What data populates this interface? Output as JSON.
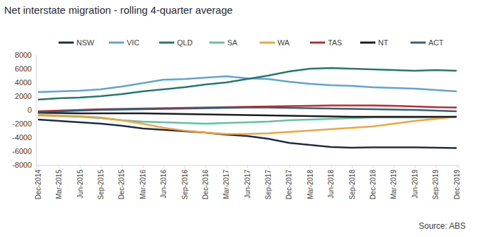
{
  "chart_data": {
    "type": "line",
    "title": "Net interstate migration - rolling 4-quarter average",
    "source": "Source: ABS",
    "categories": [
      "Dec-2014",
      "Mar-2015",
      "Jun-2015",
      "Sep-2015",
      "Dec-2015",
      "Mar-2016",
      "Jun-2016",
      "Sep-2016",
      "Dec-2016",
      "Mar-2017",
      "Jun-2017",
      "Sep-2017",
      "Dec-2017",
      "Mar-2018",
      "Jun-2018",
      "Sep-2018",
      "Dec-2018",
      "Mar-2019",
      "Jun-2019",
      "Sep-2019",
      "Dec-2019"
    ],
    "series": [
      {
        "name": "NSW",
        "color": "#1b2a47",
        "values": [
          -1400,
          -1600,
          -1800,
          -2000,
          -2300,
          -2700,
          -2900,
          -3100,
          -3300,
          -3600,
          -3800,
          -4200,
          -4800,
          -5100,
          -5400,
          -5500,
          -5450,
          -5450,
          -5450,
          -5500,
          -5550
        ]
      },
      {
        "name": "VIC",
        "color": "#5ba3d9",
        "values": [
          2600,
          2700,
          2800,
          3000,
          3400,
          3900,
          4400,
          4500,
          4700,
          4900,
          4600,
          4500,
          4100,
          3800,
          3600,
          3500,
          3300,
          3200,
          3100,
          2900,
          2700
        ]
      },
      {
        "name": "QLD",
        "color": "#1d7873",
        "values": [
          1500,
          1700,
          1800,
          2000,
          2300,
          2700,
          3000,
          3300,
          3700,
          4000,
          4500,
          5000,
          5600,
          6000,
          6100,
          6000,
          5900,
          5800,
          5700,
          5800,
          5700
        ]
      },
      {
        "name": "SA",
        "color": "#5fc3a3",
        "values": [
          -800,
          -900,
          -1000,
          -1200,
          -1500,
          -1700,
          -1800,
          -1900,
          -2000,
          -1900,
          -1800,
          -1700,
          -1500,
          -1400,
          -1300,
          -1200,
          -1100,
          -1100,
          -1100,
          -1100,
          -1000
        ]
      },
      {
        "name": "WA",
        "color": "#f5a23a",
        "values": [
          -700,
          -800,
          -900,
          -1100,
          -1500,
          -2000,
          -2600,
          -3000,
          -3300,
          -3500,
          -3500,
          -3400,
          -3200,
          -3000,
          -2800,
          -2600,
          -2400,
          -2000,
          -1600,
          -1300,
          -1000
        ]
      },
      {
        "name": "TAS",
        "color": "#c0282d",
        "values": [
          -200,
          -100,
          0,
          100,
          150,
          200,
          250,
          300,
          350,
          400,
          450,
          500,
          550,
          600,
          650,
          650,
          650,
          600,
          500,
          400,
          350
        ]
      },
      {
        "name": "NT",
        "color": "#1a1a1a",
        "values": [
          -400,
          -450,
          -500,
          -500,
          -500,
          -500,
          -550,
          -600,
          -650,
          -700,
          -750,
          -800,
          -850,
          -900,
          -950,
          -1000,
          -1000,
          -1000,
          -1000,
          -1000,
          -1000
        ]
      },
      {
        "name": "ACT",
        "color": "#2f5f80",
        "values": [
          -300,
          -200,
          -100,
          0,
          50,
          100,
          150,
          200,
          250,
          300,
          350,
          350,
          300,
          250,
          200,
          150,
          100,
          50,
          0,
          -100,
          -200
        ]
      }
    ],
    "ylim": [
      -8000,
      8000
    ],
    "yticks": [
      -8000,
      -6000,
      -4000,
      -2000,
      0,
      2000,
      4000,
      6000,
      8000
    ],
    "grid": false,
    "legend": "top"
  }
}
